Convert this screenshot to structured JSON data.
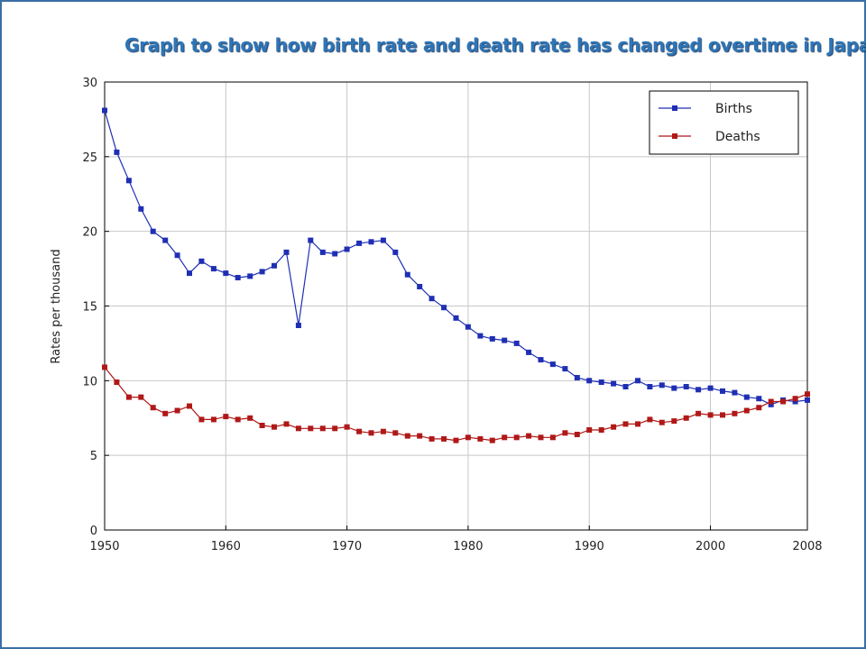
{
  "title": "Graph to show how birth rate and death rate has changed overtime in Japan",
  "colors": {
    "births": "#1f2fb4",
    "deaths": "#b01818",
    "title": "#2e75b6"
  },
  "chart_data": {
    "type": "line",
    "title": "Graph to show how birth rate and death rate has changed overtime in Japan",
    "xlabel": "",
    "ylabel": "Rates per thousand",
    "xlim": [
      1950,
      2008
    ],
    "ylim": [
      0,
      30
    ],
    "x_ticks": [
      1950,
      1960,
      1970,
      1980,
      1990,
      2000,
      2008
    ],
    "y_ticks": [
      0,
      5,
      10,
      15,
      20,
      25,
      30
    ],
    "grid": true,
    "legend_position": "top-right",
    "x": [
      1950,
      1951,
      1952,
      1953,
      1954,
      1955,
      1956,
      1957,
      1958,
      1959,
      1960,
      1961,
      1962,
      1963,
      1964,
      1965,
      1966,
      1967,
      1968,
      1969,
      1970,
      1971,
      1972,
      1973,
      1974,
      1975,
      1976,
      1977,
      1978,
      1979,
      1980,
      1981,
      1982,
      1983,
      1984,
      1985,
      1986,
      1987,
      1988,
      1989,
      1990,
      1991,
      1992,
      1993,
      1994,
      1995,
      1996,
      1997,
      1998,
      1999,
      2000,
      2001,
      2002,
      2003,
      2004,
      2005,
      2006,
      2007,
      2008
    ],
    "series": [
      {
        "name": "Births",
        "color": "#1f2fb4",
        "values": [
          28.1,
          25.3,
          23.4,
          21.5,
          20.0,
          19.4,
          18.4,
          17.2,
          18.0,
          17.5,
          17.2,
          16.9,
          17.0,
          17.3,
          17.7,
          18.6,
          13.7,
          19.4,
          18.6,
          18.5,
          18.8,
          19.2,
          19.3,
          19.4,
          18.6,
          17.1,
          16.3,
          15.5,
          14.9,
          14.2,
          13.6,
          13.0,
          12.8,
          12.7,
          12.5,
          11.9,
          11.4,
          11.1,
          10.8,
          10.2,
          10.0,
          9.9,
          9.8,
          9.6,
          10.0,
          9.6,
          9.7,
          9.5,
          9.6,
          9.4,
          9.5,
          9.3,
          9.2,
          8.9,
          8.8,
          8.4,
          8.7,
          8.6,
          8.7
        ]
      },
      {
        "name": "Deaths",
        "color": "#b01818",
        "values": [
          10.9,
          9.9,
          8.9,
          8.9,
          8.2,
          7.8,
          8.0,
          8.3,
          7.4,
          7.4,
          7.6,
          7.4,
          7.5,
          7.0,
          6.9,
          7.1,
          6.8,
          6.8,
          6.8,
          6.8,
          6.9,
          6.6,
          6.5,
          6.6,
          6.5,
          6.3,
          6.3,
          6.1,
          6.1,
          6.0,
          6.2,
          6.1,
          6.0,
          6.2,
          6.2,
          6.3,
          6.2,
          6.2,
          6.5,
          6.4,
          6.7,
          6.7,
          6.9,
          7.1,
          7.1,
          7.4,
          7.2,
          7.3,
          7.5,
          7.8,
          7.7,
          7.7,
          7.8,
          8.0,
          8.2,
          8.6,
          8.6,
          8.8,
          9.1
        ]
      }
    ]
  }
}
